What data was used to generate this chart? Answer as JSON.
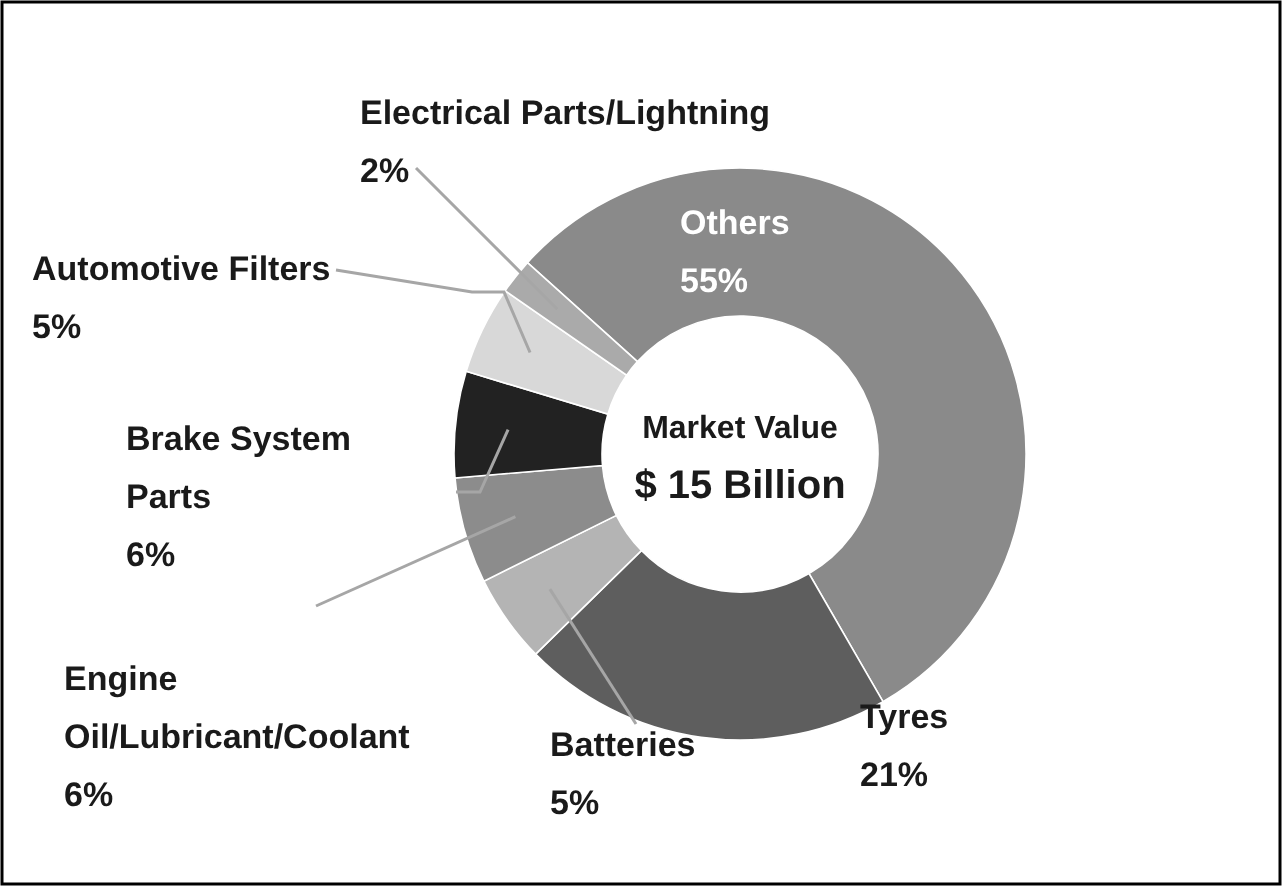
{
  "chart_data": {
    "type": "donut",
    "categories": [
      "Others",
      "Tyres",
      "Batteries",
      "Engine Oil/Lubricant/Coolant",
      "Brake System Parts",
      "Automotive Filters",
      "Electrical Parts/Lightning"
    ],
    "values": [
      55,
      21,
      5,
      6,
      6,
      5,
      2
    ],
    "value_labels": [
      "55%",
      "21%",
      "5%",
      "6%",
      "6%",
      "5%",
      "2%"
    ],
    "colors": [
      "#8a8a8a",
      "#5e5e5e",
      "#b4b4b4",
      "#8c8c8c",
      "#222222",
      "#d8d8d8",
      "#aaaaaa"
    ],
    "annotations": [
      "Market Value",
      "$ 15 Billion"
    ]
  }
}
